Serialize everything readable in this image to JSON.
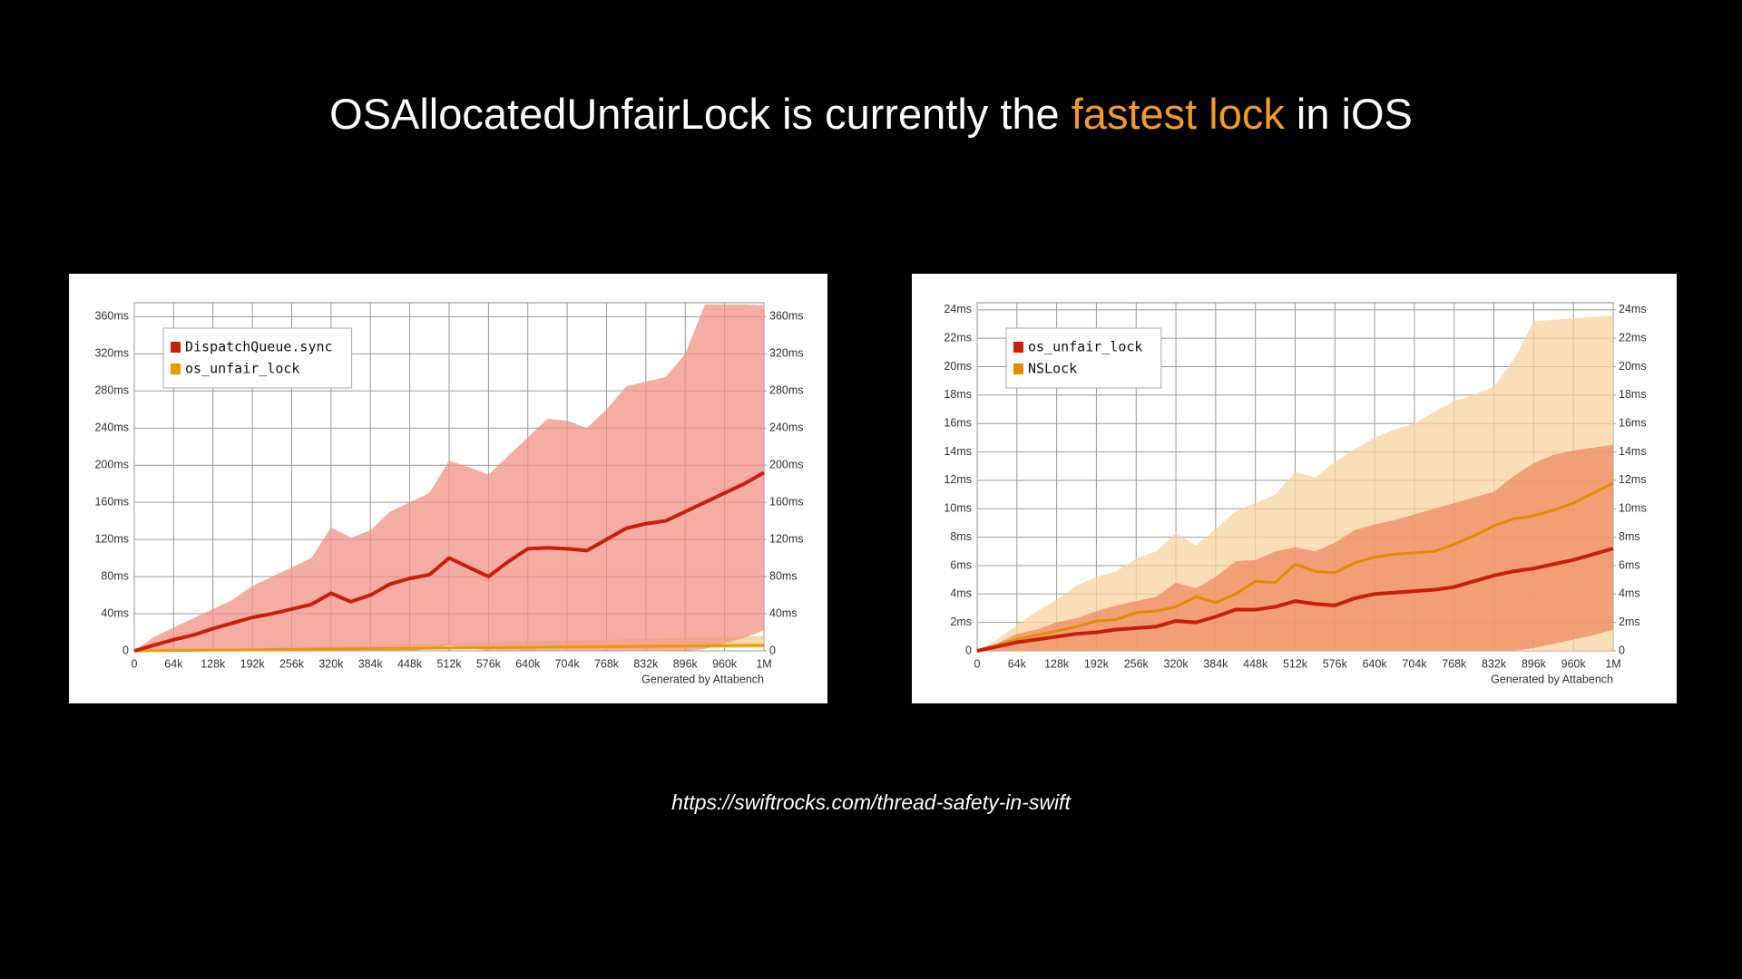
{
  "title": {
    "before": "OSAllocatedUnfairLock is currently the ",
    "highlight": "fastest lock",
    "after": " in iOS"
  },
  "source": "https://swiftrocks.com/thread-safety-in-swift",
  "chart_data": [
    {
      "type": "line",
      "caption": "Generated by Attabench",
      "legend": "upper left",
      "grid": true,
      "x": [
        0,
        32768,
        65536,
        98304,
        131072,
        163840,
        196608,
        229376,
        262144,
        294912,
        327680,
        360448,
        393216,
        425984,
        458752,
        491520,
        524288,
        557056,
        589824,
        622592,
        655360,
        688128,
        720896,
        753664,
        786432,
        819200,
        851968,
        884736,
        917504,
        950272,
        983040,
        1015808,
        1048576
      ],
      "xlim": [
        0,
        1048576
      ],
      "xticks": [
        0,
        {
          "value": 65536,
          "label": "64k"
        },
        {
          "value": 131072,
          "label": "128k"
        },
        {
          "value": 196608,
          "label": "192k"
        },
        {
          "value": 262144,
          "label": "256k"
        },
        {
          "value": 327680,
          "label": "320k"
        },
        {
          "value": 393216,
          "label": "384k"
        },
        {
          "value": 458752,
          "label": "448k"
        },
        {
          "value": 524288,
          "label": "512k"
        },
        {
          "value": 589824,
          "label": "576k"
        },
        {
          "value": 655360,
          "label": "640k"
        },
        {
          "value": 720896,
          "label": "704k"
        },
        {
          "value": 786432,
          "label": "768k"
        },
        {
          "value": 851968,
          "label": "832k"
        },
        {
          "value": 917504,
          "label": "896k"
        },
        {
          "value": 983040,
          "label": "960k"
        },
        {
          "value": 1048576,
          "label": "1M"
        }
      ],
      "ylim": [
        0,
        375
      ],
      "yticks": [
        0,
        {
          "value": 40,
          "label": "40ms"
        },
        {
          "value": 80,
          "label": "80ms"
        },
        {
          "value": 120,
          "label": "120ms"
        },
        {
          "value": 160,
          "label": "160ms"
        },
        {
          "value": 200,
          "label": "200ms"
        },
        {
          "value": 240,
          "label": "240ms"
        },
        {
          "value": 280,
          "label": "280ms"
        },
        {
          "value": 320,
          "label": "320ms"
        },
        {
          "value": 360,
          "label": "360ms"
        }
      ],
      "y2lim": [
        0,
        375
      ],
      "y2ticks": [
        0,
        {
          "value": 40,
          "label": "40ms"
        },
        {
          "value": 80,
          "label": "80ms"
        },
        {
          "value": 120,
          "label": "120ms"
        },
        {
          "value": 160,
          "label": "160ms"
        },
        {
          "value": 200,
          "label": "200ms"
        },
        {
          "value": 240,
          "label": "240ms"
        },
        {
          "value": 280,
          "label": "280ms"
        },
        {
          "value": 320,
          "label": "320ms"
        },
        {
          "value": 360,
          "label": "360ms"
        }
      ],
      "series": [
        {
          "name": "DispatchQueue.sync",
          "color": "#c81e0a",
          "band_color": "#f19184",
          "values": [
            0,
            6,
            12,
            17,
            24,
            30,
            36,
            40,
            45,
            50,
            62,
            53,
            60,
            72,
            78,
            82,
            100,
            90,
            80,
            96,
            110,
            111,
            110,
            108,
            120,
            132,
            137,
            140,
            150,
            160,
            170,
            180,
            192
          ],
          "upper": [
            0,
            15,
            25,
            35,
            45,
            55,
            70,
            80,
            90,
            100,
            133,
            122,
            130,
            150,
            160,
            170,
            205,
            198,
            190,
            210,
            230,
            250,
            248,
            240,
            260,
            285,
            290,
            295,
            320,
            373,
            373,
            373,
            372
          ],
          "lower": [
            0,
            0,
            0,
            0,
            0,
            0,
            0,
            0,
            0,
            0,
            0,
            0,
            0,
            0,
            0,
            2,
            6,
            3,
            0,
            0,
            0,
            0,
            0,
            0,
            0,
            0,
            0,
            0,
            0,
            2,
            8,
            14,
            22
          ]
        },
        {
          "name": "os_unfair_lock",
          "color": "#e89a00",
          "band_color": "#f6cf8e",
          "values": [
            0,
            0.2,
            0.4,
            0.6,
            0.8,
            0.9,
            1.1,
            1.3,
            1.5,
            1.7,
            1.9,
            2.1,
            2.3,
            2.4,
            2.6,
            2.8,
            3.0,
            3.2,
            3.4,
            3.6,
            3.8,
            3.9,
            4.1,
            4.3,
            4.5,
            4.7,
            4.9,
            5.1,
            5.3,
            5.4,
            5.6,
            5.8,
            6.0
          ],
          "upper": [
            0,
            0.5,
            1,
            1.5,
            2,
            2.5,
            3,
            3.5,
            4,
            4.5,
            5,
            5.5,
            6,
            6.5,
            7,
            7.5,
            8,
            8.5,
            9,
            9.5,
            10,
            10.5,
            11,
            11.5,
            12,
            12.5,
            13,
            13.5,
            14,
            14.5,
            15,
            15.5,
            16
          ],
          "lower": [
            0,
            0.1,
            0.2,
            0.3,
            0.4,
            0.5,
            0.6,
            0.7,
            0.8,
            0.9,
            1,
            1.1,
            1.2,
            1.3,
            1.4,
            1.5,
            1.6,
            1.7,
            1.8,
            1.9,
            2,
            2.1,
            2.2,
            2.3,
            2.4,
            2.5,
            2.6,
            2.7,
            2.8,
            2.9,
            3,
            3.1,
            3.2
          ]
        }
      ]
    },
    {
      "type": "line",
      "caption": "Generated by Attabench",
      "legend": "upper left",
      "grid": true,
      "x": [
        0,
        32768,
        65536,
        98304,
        131072,
        163840,
        196608,
        229376,
        262144,
        294912,
        327680,
        360448,
        393216,
        425984,
        458752,
        491520,
        524288,
        557056,
        589824,
        622592,
        655360,
        688128,
        720896,
        753664,
        786432,
        819200,
        851968,
        884736,
        917504,
        950272,
        983040,
        1015808,
        1048576
      ],
      "xlim": [
        0,
        1048576
      ],
      "xticks": [
        0,
        {
          "value": 65536,
          "label": "64k"
        },
        {
          "value": 131072,
          "label": "128k"
        },
        {
          "value": 196608,
          "label": "192k"
        },
        {
          "value": 262144,
          "label": "256k"
        },
        {
          "value": 327680,
          "label": "320k"
        },
        {
          "value": 393216,
          "label": "384k"
        },
        {
          "value": 458752,
          "label": "448k"
        },
        {
          "value": 524288,
          "label": "512k"
        },
        {
          "value": 589824,
          "label": "576k"
        },
        {
          "value": 655360,
          "label": "640k"
        },
        {
          "value": 720896,
          "label": "704k"
        },
        {
          "value": 786432,
          "label": "768k"
        },
        {
          "value": 851968,
          "label": "832k"
        },
        {
          "value": 917504,
          "label": "896k"
        },
        {
          "value": 983040,
          "label": "960k"
        },
        {
          "value": 1048576,
          "label": "1M"
        }
      ],
      "ylim": [
        0,
        24.5
      ],
      "yticks": [
        0,
        {
          "value": 2,
          "label": "2ms"
        },
        {
          "value": 4,
          "label": "4ms"
        },
        {
          "value": 6,
          "label": "6ms"
        },
        {
          "value": 8,
          "label": "8ms"
        },
        {
          "value": 10,
          "label": "10ms"
        },
        {
          "value": 12,
          "label": "12ms"
        },
        {
          "value": 14,
          "label": "14ms"
        },
        {
          "value": 16,
          "label": "16ms"
        },
        {
          "value": 18,
          "label": "18ms"
        },
        {
          "value": 20,
          "label": "20ms"
        },
        {
          "value": 22,
          "label": "22ms"
        },
        {
          "value": 24,
          "label": "24ms"
        }
      ],
      "y2lim": [
        0,
        24.5
      ],
      "y2ticks": [
        0,
        {
          "value": 2,
          "label": "2ms"
        },
        {
          "value": 4,
          "label": "4ms"
        },
        {
          "value": 6,
          "label": "6ms"
        },
        {
          "value": 8,
          "label": "8ms"
        },
        {
          "value": 10,
          "label": "10ms"
        },
        {
          "value": 12,
          "label": "12ms"
        },
        {
          "value": 14,
          "label": "14ms"
        },
        {
          "value": 16,
          "label": "16ms"
        },
        {
          "value": 18,
          "label": "18ms"
        },
        {
          "value": 20,
          "label": "20ms"
        },
        {
          "value": 22,
          "label": "22ms"
        },
        {
          "value": 24,
          "label": "24ms"
        }
      ],
      "series": [
        {
          "name": "os_unfair_lock",
          "color": "#c81e0a",
          "band_color": "#ee8a60",
          "values": [
            0,
            0.3,
            0.6,
            0.8,
            1.0,
            1.2,
            1.3,
            1.5,
            1.6,
            1.7,
            2.1,
            2.0,
            2.4,
            2.9,
            2.9,
            3.1,
            3.5,
            3.3,
            3.2,
            3.7,
            4.0,
            4.1,
            4.2,
            4.3,
            4.5,
            4.9,
            5.3,
            5.6,
            5.8,
            6.1,
            6.4,
            6.8,
            7.2
          ],
          "upper": [
            0,
            0.5,
            1.2,
            1.5,
            2.0,
            2.3,
            2.8,
            3.2,
            3.5,
            3.8,
            4.8,
            4.4,
            5.2,
            6.3,
            6.4,
            7.0,
            7.3,
            7.0,
            7.6,
            8.5,
            8.9,
            9.2,
            9.6,
            10.0,
            10.4,
            10.8,
            11.2,
            12.3,
            13.2,
            13.8,
            14.1,
            14.3,
            14.5
          ],
          "lower": [
            0,
            0,
            0,
            0,
            0,
            0,
            0,
            0,
            0,
            0,
            0,
            0,
            0,
            0,
            0,
            0,
            0,
            0,
            0,
            0,
            0,
            0,
            0,
            0,
            0,
            0,
            0,
            0,
            0.2,
            0.5,
            0.8,
            1.1,
            1.5
          ]
        },
        {
          "name": "NSLock",
          "color": "#e08e00",
          "band_color": "#f8d3a0",
          "values": [
            0,
            0.4,
            0.8,
            1.1,
            1.4,
            1.7,
            2.1,
            2.2,
            2.7,
            2.8,
            3.1,
            3.8,
            3.4,
            4.0,
            4.9,
            4.8,
            6.1,
            5.6,
            5.5,
            6.2,
            6.6,
            6.8,
            6.9,
            7.0,
            7.5,
            8.1,
            8.8,
            9.3,
            9.5,
            9.9,
            10.4,
            11.1,
            11.8
          ],
          "upper": [
            0,
            0.8,
            1.8,
            2.8,
            3.6,
            4.6,
            5.2,
            5.6,
            6.5,
            7.0,
            8.3,
            7.4,
            8.6,
            9.8,
            10.4,
            11.0,
            12.6,
            12.2,
            13.3,
            14.2,
            15.0,
            15.6,
            16.0,
            16.8,
            17.6,
            18.0,
            18.6,
            20.5,
            23.2,
            23.3,
            23.4,
            23.5,
            23.6
          ],
          "lower": [
            0,
            0,
            0,
            0,
            0,
            0,
            0,
            0,
            0,
            0,
            0,
            0,
            0,
            0,
            0,
            0,
            0,
            0,
            0,
            0,
            0,
            0,
            0,
            0,
            0,
            0,
            0,
            0,
            0,
            0,
            0,
            0,
            0
          ]
        }
      ]
    }
  ]
}
